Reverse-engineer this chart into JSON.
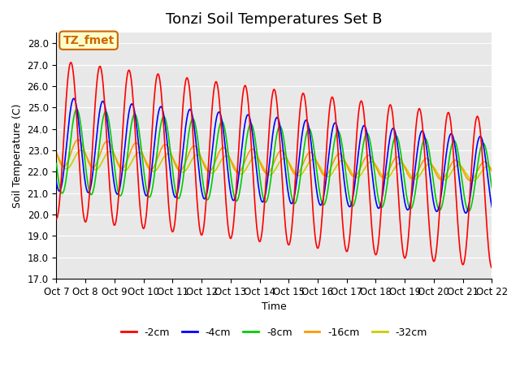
{
  "title": "Tonzi Soil Temperatures Set B",
  "xlabel": "Time",
  "ylabel": "Soil Temperature (C)",
  "ylim": [
    17.0,
    28.5
  ],
  "yticks": [
    17.0,
    18.0,
    19.0,
    20.0,
    21.0,
    22.0,
    23.0,
    24.0,
    25.0,
    26.0,
    27.0,
    28.0
  ],
  "xtick_labels": [
    "Oct 7",
    "Oct 8",
    "Oct 9",
    "Oct 10",
    "Oct 11",
    "Oct 12",
    "Oct 13",
    "Oct 14",
    "Oct 15",
    "Oct 16",
    "Oct 17",
    "Oct 18",
    "Oct 19",
    "Oct 20",
    "Oct 21",
    "Oct 22"
  ],
  "series_colors": [
    "#ff0000",
    "#0000ff",
    "#00cc00",
    "#ff9900",
    "#cccc00"
  ],
  "series_labels": [
    "-2cm",
    "-4cm",
    "-8cm",
    "-16cm",
    "-32cm"
  ],
  "annotation_text": "TZ_fmet",
  "annotation_color": "#cc6600",
  "annotation_bg": "#ffffcc",
  "plot_bg": "#e8e8e8",
  "n_points": 720,
  "days": 15,
  "title_fontsize": 13,
  "label_fontsize": 9,
  "tick_fontsize": 8.5
}
